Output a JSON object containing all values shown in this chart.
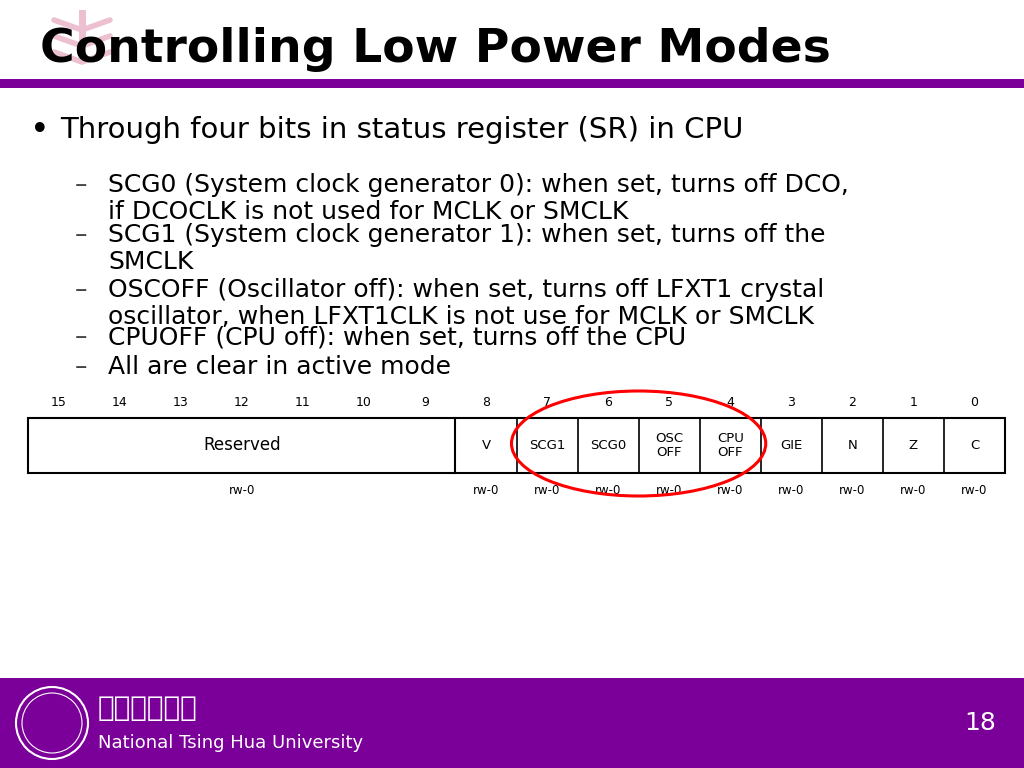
{
  "title": "Controlling Low Power Modes",
  "title_color": "#000000",
  "title_fontsize": 34,
  "header_bar_color": "#7B0099",
  "footer_color": "#7B0099",
  "footer_text2": "National Tsing Hua University",
  "footer_page": "18",
  "bullet_main": "Through four bits in status register (SR) in CPU",
  "sub_bullets": [
    "SCG0 (System clock generator 0): when set, turns off DCO,\nif DCOCLK is not used for MCLK or SMCLK",
    "SCG1 (System clock generator 1): when set, turns off the\nSMCLK",
    "OSCOFF (Oscillator off): when set, turns off LFXT1 crystal\noscillator, when LFXT1CLK is not use for MCLK or SMCLK",
    "CPUOFF (CPU off): when set, turns off the CPU",
    "All are clear in active mode"
  ],
  "background_color": "#FFFFFF"
}
